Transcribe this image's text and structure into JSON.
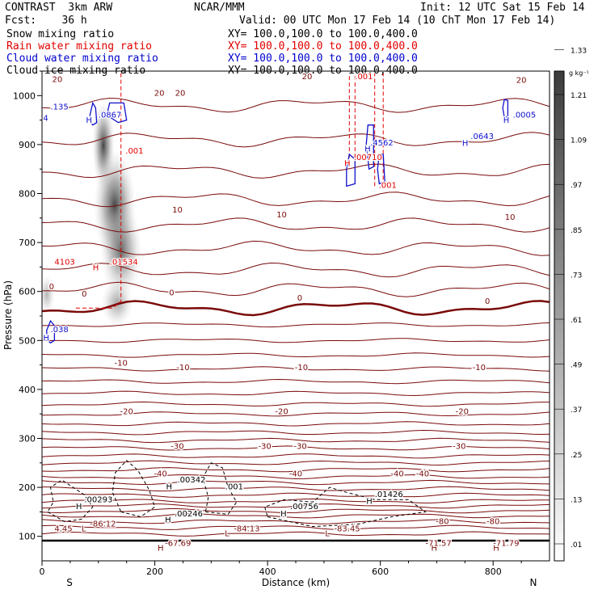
{
  "header": {
    "model": "CONTRAST  3km ARW",
    "org": "NCAR/MMM",
    "init": "Init: 12 UTC Sat 15 Feb 14",
    "fcst": "Fcst:    36 h",
    "valid": "Valid: 00 UTC Mon 17 Feb 14 (10 ChT Mon 17 Feb 14)",
    "fields": [
      {
        "label": "Snow mixing ratio",
        "xy": "XY= 100.0,100.0 to 100.0,400.0",
        "color": "#000000"
      },
      {
        "label": "Rain water mixing ratio",
        "xy": "XY= 100.0,100.0 to 100.0,400.0",
        "color": "#e00000"
      },
      {
        "label": "Cloud water mixing ratio",
        "xy": "XY= 100.0,100.0 to 100.0,400.0",
        "color": "#0000cc"
      },
      {
        "label": "Cloud ice mixing ratio",
        "xy": "XY= 100.0,100.0 to 100.0,400.0",
        "color": "#000000"
      }
    ]
  },
  "colors": {
    "temperature": "#7a0a0a",
    "rain": "#e00000",
    "cloud_water": "#1010cc",
    "ice": "#000000"
  },
  "chart_data": {
    "type": "cross-section",
    "xlabel": "Distance (km)",
    "ylabel": "Pressure (hPa)",
    "xlim": [
      0,
      900
    ],
    "ylim": [
      1050,
      50
    ],
    "x_ticks": [
      "0",
      "200",
      "400",
      "600",
      "800"
    ],
    "y_ticks": [
      "100",
      "200",
      "300",
      "400",
      "500",
      "600",
      "700",
      "800",
      "900",
      "1000"
    ],
    "x_end_labels": [
      "S",
      "N"
    ],
    "colorbar": {
      "unit": "g kg⁻¹",
      "labels": [
        ".01",
        ".13",
        ".25",
        ".37",
        ".49",
        ".61",
        ".73",
        ".85",
        ".97",
        "1.09",
        "1.21",
        "1.33"
      ]
    },
    "isotherm_labels": [
      {
        "x": 210,
        "p": 229,
        "t": "-40"
      },
      {
        "x": 450,
        "p": 229,
        "t": "-40"
      },
      {
        "x": 630,
        "p": 229,
        "t": "-40"
      },
      {
        "x": 675,
        "p": 229,
        "t": "-40"
      },
      {
        "x": 240,
        "p": 285,
        "t": "-30"
      },
      {
        "x": 395,
        "p": 285,
        "t": "-30"
      },
      {
        "x": 458,
        "p": 285,
        "t": "-30"
      },
      {
        "x": 740,
        "p": 285,
        "t": "-30"
      },
      {
        "x": 150,
        "p": 356,
        "t": "-20"
      },
      {
        "x": 425,
        "p": 356,
        "t": "-20"
      },
      {
        "x": 745,
        "p": 356,
        "t": "-20"
      },
      {
        "x": 140,
        "p": 455,
        "t": "-10"
      },
      {
        "x": 250,
        "p": 446,
        "t": "-10"
      },
      {
        "x": 460,
        "p": 446,
        "t": "-10"
      },
      {
        "x": 775,
        "p": 446,
        "t": "-10"
      },
      {
        "x": 17,
        "p": 611,
        "t": "0"
      },
      {
        "x": 75,
        "p": 596,
        "t": "0"
      },
      {
        "x": 230,
        "p": 599,
        "t": "0"
      },
      {
        "x": 457,
        "p": 588,
        "t": "0"
      },
      {
        "x": 790,
        "p": 581,
        "t": "0"
      },
      {
        "x": 240,
        "p": 768,
        "t": "10"
      },
      {
        "x": 425,
        "p": 758,
        "t": "10"
      },
      {
        "x": 830,
        "p": 753,
        "t": "10"
      },
      {
        "x": 27,
        "p": 1034,
        "t": "20"
      },
      {
        "x": 208,
        "p": 1006,
        "t": "20"
      },
      {
        "x": 245,
        "p": 1006,
        "t": "20"
      },
      {
        "x": 470,
        "p": 1040,
        "t": "20"
      },
      {
        "x": 850,
        "p": 1033,
        "t": "20"
      },
      {
        "x": 710,
        "p": 132,
        "t": "-80"
      },
      {
        "x": 800,
        "p": 132,
        "t": "-80"
      }
    ],
    "extrema_labels": [
      {
        "x": 205,
        "p": 77,
        "t": "H",
        "c": "#7a0a0a"
      },
      {
        "x": 218,
        "p": 87,
        "t": "-67.69",
        "c": "#7a0a0a"
      },
      {
        "x": 690,
        "p": 77,
        "t": "H",
        "c": "#7a0a0a"
      },
      {
        "x": 680,
        "p": 87,
        "t": "-71.57",
        "c": "#7a0a0a"
      },
      {
        "x": 800,
        "p": 77,
        "t": "H",
        "c": "#7a0a0a"
      },
      {
        "x": 800,
        "p": 87,
        "t": "-71.79",
        "c": "#7a0a0a"
      },
      {
        "x": 70,
        "p": 117,
        "t": "L",
        "c": "#7a0a0a"
      },
      {
        "x": 85,
        "p": 127,
        "t": "-86.12",
        "c": "#7a0a0a"
      },
      {
        "x": 324,
        "p": 107,
        "t": "L",
        "c": "#7a0a0a"
      },
      {
        "x": 340,
        "p": 117,
        "t": "-84.13",
        "c": "#7a0a0a"
      },
      {
        "x": 502,
        "p": 107,
        "t": "L",
        "c": "#7a0a0a"
      },
      {
        "x": 518,
        "p": 117,
        "t": "-83.45",
        "c": "#7a0a0a"
      },
      {
        "x": 22,
        "p": 117,
        "t": "4.45",
        "c": "#7a0a0a"
      },
      {
        "x": 218,
        "p": 135,
        "t": "H",
        "c": "#000000"
      },
      {
        "x": 235,
        "p": 147,
        "t": ".00246",
        "c": "#000000"
      },
      {
        "x": 60,
        "p": 162,
        "t": "H",
        "c": "#000000"
      },
      {
        "x": 75,
        "p": 176,
        "t": ".00293",
        "c": "#000000"
      },
      {
        "x": 423,
        "p": 147,
        "t": "H",
        "c": "#000000"
      },
      {
        "x": 440,
        "p": 162,
        "t": ".00756",
        "c": "#000000"
      },
      {
        "x": 575,
        "p": 173,
        "t": "H",
        "c": "#000000"
      },
      {
        "x": 590,
        "p": 187,
        "t": ".01426",
        "c": "#000000"
      },
      {
        "x": 220,
        "p": 203,
        "t": "H",
        "c": "#000000"
      },
      {
        "x": 240,
        "p": 217,
        "t": ".00342",
        "c": "#000000"
      },
      {
        "x": 325,
        "p": 203,
        "t": ".001",
        "c": "#000000"
      },
      {
        "x": 2,
        "p": 506,
        "t": "H",
        "c": "#1010cc"
      },
      {
        "x": 15,
        "p": 524,
        "t": ".038",
        "c": "#1010cc"
      },
      {
        "x": 90,
        "p": 650,
        "t": "H",
        "c": "#e00000"
      },
      {
        "x": 120,
        "p": 661,
        "t": ".01534",
        "c": "#e00000"
      },
      {
        "x": 22,
        "p": 661,
        "t": "4103",
        "c": "#e00000"
      },
      {
        "x": 148,
        "p": 888,
        "t": ".001",
        "c": "#e00000"
      },
      {
        "x": 536,
        "p": 863,
        "t": "H",
        "c": "#e00000"
      },
      {
        "x": 553,
        "p": 875,
        "t": ".00710",
        "c": "#e00000"
      },
      {
        "x": 597,
        "p": 818,
        "t": ".001",
        "c": "#e00000"
      },
      {
        "x": 555,
        "p": 1040,
        "t": ".001",
        "c": "#e00000"
      },
      {
        "x": 572,
        "p": 892,
        "t": "H",
        "c": "#1010cc"
      },
      {
        "x": 582,
        "p": 905,
        "t": ".4562",
        "c": "#1010cc"
      },
      {
        "x": 78,
        "p": 951,
        "t": "H",
        "c": "#1010cc"
      },
      {
        "x": 100,
        "p": 962,
        "t": ".0867",
        "c": "#1010cc"
      },
      {
        "x": 745,
        "p": 904,
        "t": "H",
        "c": "#1010cc"
      },
      {
        "x": 760,
        "p": 918,
        "t": ".0643",
        "c": "#1010cc"
      },
      {
        "x": 818,
        "p": 951,
        "t": "H",
        "c": "#1010cc"
      },
      {
        "x": 835,
        "p": 962,
        "t": ".0005",
        "c": "#1010cc"
      },
      {
        "x": 2,
        "p": 955,
        "t": "4",
        "c": "#1010cc"
      },
      {
        "x": 15,
        "p": 978,
        "t": ".135",
        "c": "#1010cc"
      }
    ]
  }
}
